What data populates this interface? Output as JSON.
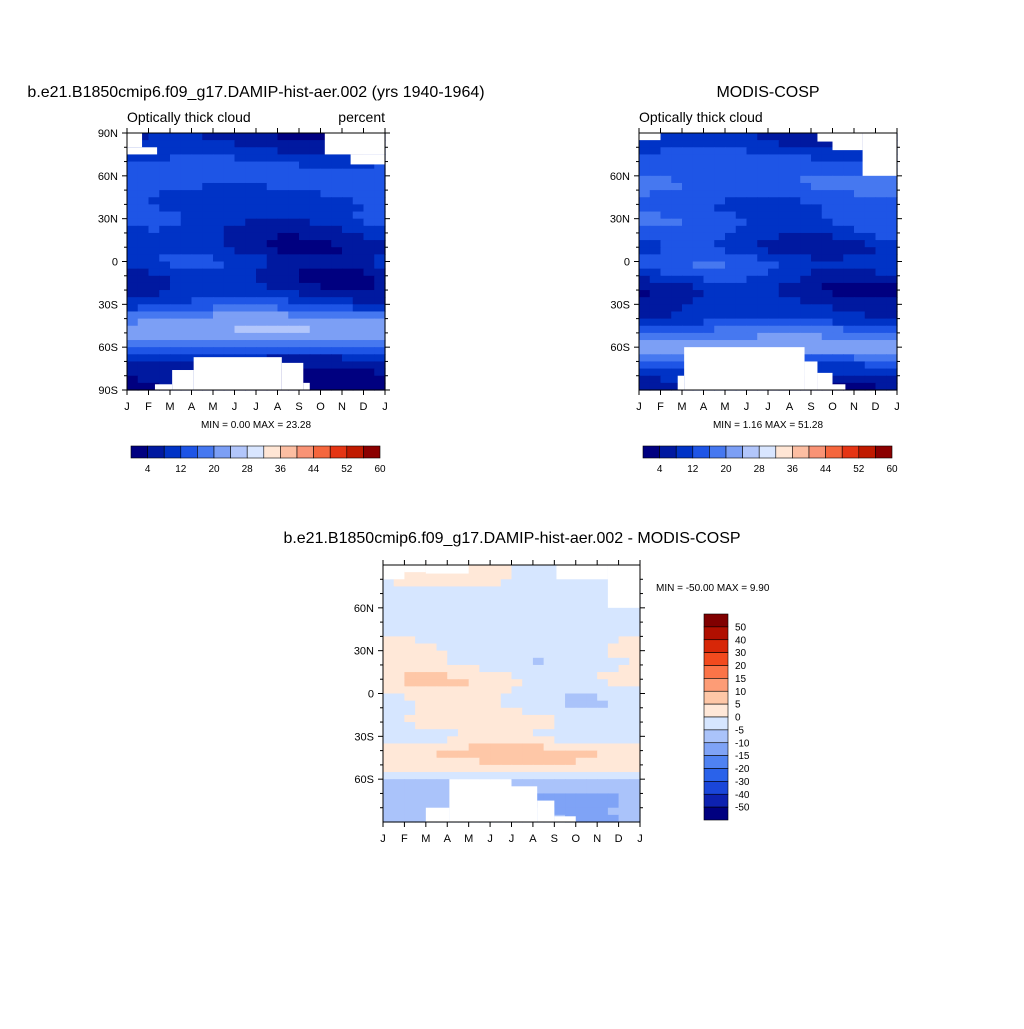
{
  "colors": {
    "seq_palette": [
      "#000080",
      "#0019a0",
      "#0033c6",
      "#1e55e6",
      "#4678f0",
      "#7c9ff5",
      "#b2c6fb",
      "#d9e6ff",
      "#ffe6d5",
      "#fcbea2",
      "#f99375",
      "#f5663d",
      "#e53514",
      "#c01a00",
      "#8b0000"
    ],
    "diff_palette": [
      "#000080",
      "#0d21b0",
      "#1a46d9",
      "#2a62ea",
      "#4f82f2",
      "#7fa3f6",
      "#aac3fa",
      "#d6e6ff",
      "#ffe8d8",
      "#fec7a7",
      "#fd9c76",
      "#fb7448",
      "#f24a1e",
      "#d72708",
      "#b00f00",
      "#800000"
    ],
    "white": "#ffffff"
  },
  "panels": [
    {
      "id": "model",
      "title": "b.e21.B1850cmip6.f09_g17.DAMIP-hist-aer.002 (yrs 1940-1964)",
      "subtitle_left": "Optically thick cloud",
      "subtitle_right": "percent",
      "min_max": "MIN =   0.00 MAX =  23.28",
      "lat_ticks": [
        "90N",
        "60N",
        "30N",
        "0",
        "30S",
        "60S",
        "90S"
      ],
      "month_ticks": [
        "J",
        "F",
        "M",
        "A",
        "M",
        "J",
        "J",
        "A",
        "S",
        "O",
        "N",
        "D",
        "J"
      ],
      "colorbar_labels": [
        "4",
        "12",
        "20",
        "28",
        "36",
        "44",
        "52",
        "60"
      ]
    },
    {
      "id": "obs",
      "title": "MODIS-COSP",
      "subtitle_left": "Optically thick cloud",
      "subtitle_right": "",
      "min_max": "MIN =   1.16 MAX =  51.28",
      "lat_ticks": [
        "60N",
        "30N",
        "0",
        "30S",
        "60S"
      ],
      "month_ticks": [
        "J",
        "F",
        "M",
        "A",
        "M",
        "J",
        "J",
        "A",
        "S",
        "O",
        "N",
        "D",
        "J"
      ],
      "colorbar_labels": [
        "4",
        "12",
        "20",
        "28",
        "36",
        "44",
        "52",
        "60"
      ]
    },
    {
      "id": "diff",
      "title": "b.e21.B1850cmip6.f09_g17.DAMIP-hist-aer.002 - MODIS-COSP",
      "min_max": "MIN = -50.00 MAX =   9.90",
      "lat_ticks": [
        "60N",
        "30N",
        "0",
        "30S",
        "60S"
      ],
      "month_ticks": [
        "J",
        "F",
        "M",
        "A",
        "M",
        "J",
        "J",
        "A",
        "S",
        "O",
        "N",
        "D",
        "J"
      ],
      "colorbar_labels": [
        "50",
        "40",
        "30",
        "20",
        "15",
        "10",
        "5",
        "0",
        "-5",
        "-10",
        "-15",
        "-20",
        "-30",
        "-40",
        "-50"
      ]
    }
  ],
  "chart_data": [
    {
      "type": "heatmap",
      "title": "b.e21.B1850cmip6.f09_g17.DAMIP-hist-aer.002 (yrs 1940-1964)",
      "xlabel": "",
      "ylabel": "",
      "x": [
        "J",
        "F",
        "M",
        "A",
        "M",
        "J",
        "J",
        "A",
        "S",
        "O",
        "N",
        "D",
        "J"
      ],
      "ylim": [
        -90,
        90
      ],
      "levels": [
        4,
        8,
        12,
        16,
        20,
        24,
        28,
        32,
        36,
        40,
        44,
        48,
        52,
        56,
        60
      ],
      "series_profile": {
        "lat": [
          -85,
          -70,
          -60,
          -50,
          -40,
          -30,
          -20,
          -10,
          0,
          10,
          20,
          30,
          40,
          50,
          60,
          70,
          85
        ],
        "value": [
          3,
          6,
          16,
          24,
          21,
          12,
          7,
          6,
          10,
          6,
          8,
          11,
          10,
          12,
          14,
          12,
          6
        ]
      }
    },
    {
      "type": "heatmap",
      "title": "MODIS-COSP",
      "xlabel": "",
      "ylabel": "",
      "x": [
        "J",
        "F",
        "M",
        "A",
        "M",
        "J",
        "J",
        "A",
        "S",
        "O",
        "N",
        "D",
        "J"
      ],
      "ylim": [
        -90,
        90
      ],
      "levels": [
        4,
        8,
        12,
        16,
        20,
        24,
        28,
        32,
        36,
        40,
        44,
        48,
        52,
        56,
        60
      ],
      "series_profile": {
        "lat": [
          -85,
          -70,
          -60,
          -50,
          -40,
          -30,
          -20,
          -10,
          0,
          10,
          20,
          30,
          40,
          50,
          60,
          70,
          85
        ],
        "value": [
          6,
          14,
          24,
          18,
          10,
          8,
          5,
          10,
          13,
          8,
          12,
          14,
          12,
          16,
          16,
          14,
          8
        ]
      }
    },
    {
      "type": "heatmap",
      "title": "b.e21.B1850cmip6.f09_g17.DAMIP-hist-aer.002 - MODIS-COSP",
      "xlabel": "",
      "ylabel": "",
      "x": [
        "J",
        "F",
        "M",
        "A",
        "M",
        "J",
        "J",
        "A",
        "S",
        "O",
        "N",
        "D",
        "J"
      ],
      "ylim": [
        -90,
        90
      ],
      "levels": [
        -50,
        -40,
        -30,
        -20,
        -15,
        -10,
        -5,
        0,
        5,
        10,
        15,
        20,
        30,
        40,
        50
      ],
      "series_profile": {
        "lat": [
          -85,
          -70,
          -60,
          -50,
          -40,
          -30,
          -20,
          -10,
          0,
          10,
          20,
          30,
          40,
          50,
          60,
          70,
          85
        ],
        "value": [
          -8,
          -10,
          -5,
          4,
          6,
          -3,
          2,
          -2,
          -1,
          3,
          -2,
          -1,
          -2,
          -3,
          -1,
          -2,
          1
        ]
      }
    }
  ]
}
